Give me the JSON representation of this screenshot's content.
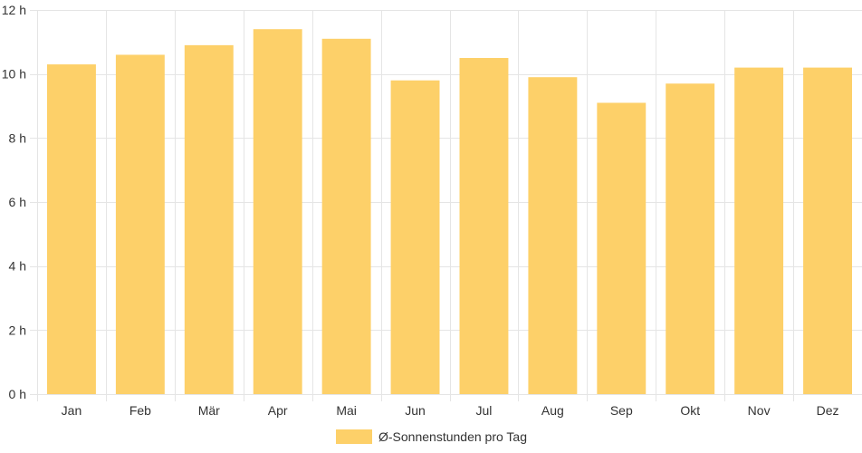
{
  "chart_data": {
    "type": "bar",
    "categories": [
      "Jan",
      "Feb",
      "Mär",
      "Apr",
      "Mai",
      "Jun",
      "Jul",
      "Aug",
      "Sep",
      "Okt",
      "Nov",
      "Dez"
    ],
    "series": [
      {
        "name": "Ø-Sonnenstunden pro Tag",
        "values": [
          10.3,
          10.6,
          10.9,
          11.4,
          11.1,
          9.8,
          10.5,
          9.9,
          9.1,
          9.7,
          10.2,
          10.2
        ],
        "color": "#fdd069"
      }
    ],
    "y_ticks": [
      "0 h",
      "2 h",
      "4 h",
      "6 h",
      "8 h",
      "10 h",
      "12 h"
    ],
    "y_tick_values": [
      0,
      2,
      4,
      6,
      8,
      10,
      12
    ],
    "ylim": [
      0,
      12
    ],
    "title": "",
    "xlabel": "",
    "ylabel": "",
    "grid": true,
    "legend_position": "bottom",
    "colors": {
      "grid": "#e5e5e5",
      "text": "#333333"
    }
  }
}
